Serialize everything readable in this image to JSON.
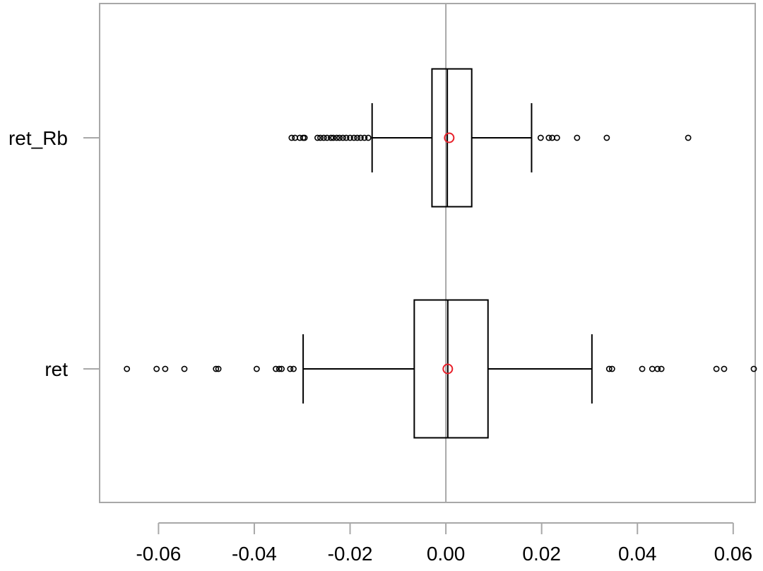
{
  "chart_data": {
    "type": "boxplot",
    "orientation": "horizontal",
    "xlim": [
      -0.0723,
      0.0646
    ],
    "x_ticks": [
      {
        "value": -0.06,
        "label": "-0.06"
      },
      {
        "value": -0.04,
        "label": "-0.04"
      },
      {
        "value": -0.02,
        "label": "-0.02"
      },
      {
        "value": 0.0,
        "label": "0.00"
      },
      {
        "value": 0.02,
        "label": "0.02"
      },
      {
        "value": 0.04,
        "label": "0.04"
      },
      {
        "value": 0.06,
        "label": "0.06"
      }
    ],
    "reference_line_x": 0.0,
    "series": [
      {
        "name": "ret_Rb",
        "whisker_low": -0.0154,
        "q1": -0.0029,
        "median": 0.0003,
        "q3": 0.0054,
        "whisker_high": 0.0179,
        "mean": 0.0007,
        "outliers": [
          -0.0322,
          -0.0315,
          -0.0305,
          -0.0298,
          -0.0295,
          -0.0268,
          -0.0262,
          -0.0255,
          -0.0248,
          -0.024,
          -0.0235,
          -0.0228,
          -0.0222,
          -0.0215,
          -0.0208,
          -0.02,
          -0.0192,
          -0.0185,
          -0.0178,
          -0.017,
          -0.0162,
          0.0198,
          0.0215,
          0.0222,
          0.0232,
          0.0274,
          0.0336,
          0.0506
        ]
      },
      {
        "name": "ret",
        "whisker_low": -0.0298,
        "q1": -0.0066,
        "median": 0.0004,
        "q3": 0.0088,
        "whisker_high": 0.0305,
        "mean": 0.0004,
        "outliers": [
          -0.0666,
          -0.0604,
          -0.0586,
          -0.0546,
          -0.048,
          -0.0475,
          -0.0395,
          -0.0355,
          -0.0348,
          -0.0343,
          -0.0325,
          -0.0318,
          0.0341,
          0.0347,
          0.041,
          0.0431,
          0.0442,
          0.045,
          0.0565,
          0.0581,
          0.0643
        ]
      }
    ],
    "colors": {
      "box": "#000000",
      "mean_marker": "#e8202a",
      "frame": "#a8a8a8",
      "reference_line": "#a8a8a8"
    }
  }
}
